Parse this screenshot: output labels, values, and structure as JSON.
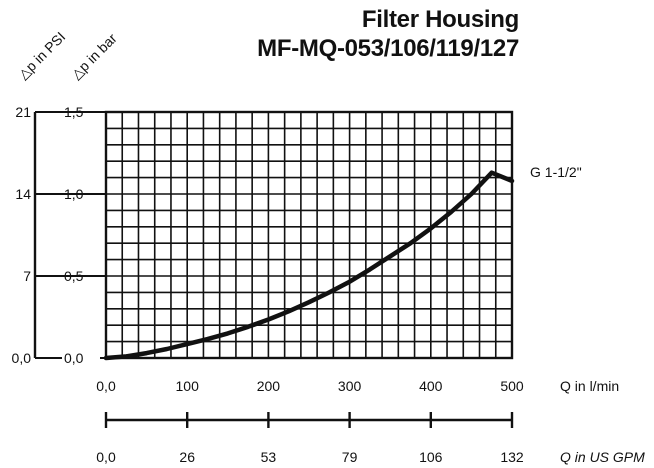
{
  "chart_data": {
    "type": "line",
    "title": "Filter Housing",
    "subtitle": "MF-MQ-053/106/119/127",
    "ylabel_psi": "△p in PSI",
    "ylabel_bar": "△p in bar",
    "xlabel": "Q in l/min",
    "xlabel2": "Q in US GPM",
    "xlim": [
      0,
      500
    ],
    "ylim": [
      0,
      1.5
    ],
    "x_ticks": [
      0,
      100,
      200,
      300,
      400,
      500
    ],
    "x_tick_labels": [
      "0,0",
      "100",
      "200",
      "300",
      "400",
      "500"
    ],
    "x2_tick_labels": [
      "0,0",
      "26",
      "53",
      "79",
      "106",
      "132"
    ],
    "y_ticks": [
      0,
      0.5,
      1.0,
      1.5
    ],
    "y_tick_labels": [
      "0,0",
      "0,5",
      "1,0",
      "1,5"
    ],
    "y_psi_tick_labels": [
      "0,0",
      "7",
      "14",
      "21"
    ],
    "grid": true,
    "grid_x_step": 20,
    "grid_y_step": 0.1,
    "series": [
      {
        "name": "G 1-1/2\"",
        "x": [
          0,
          25,
          50,
          75,
          100,
          125,
          150,
          175,
          200,
          225,
          250,
          275,
          300,
          325,
          350,
          375,
          400,
          425,
          450,
          475,
          500
        ],
        "y": [
          0.0,
          0.01,
          0.03,
          0.055,
          0.085,
          0.115,
          0.15,
          0.19,
          0.235,
          0.285,
          0.34,
          0.4,
          0.465,
          0.54,
          0.62,
          0.7,
          0.79,
          0.89,
          1.0,
          1.13,
          1.08
        ]
      }
    ]
  }
}
